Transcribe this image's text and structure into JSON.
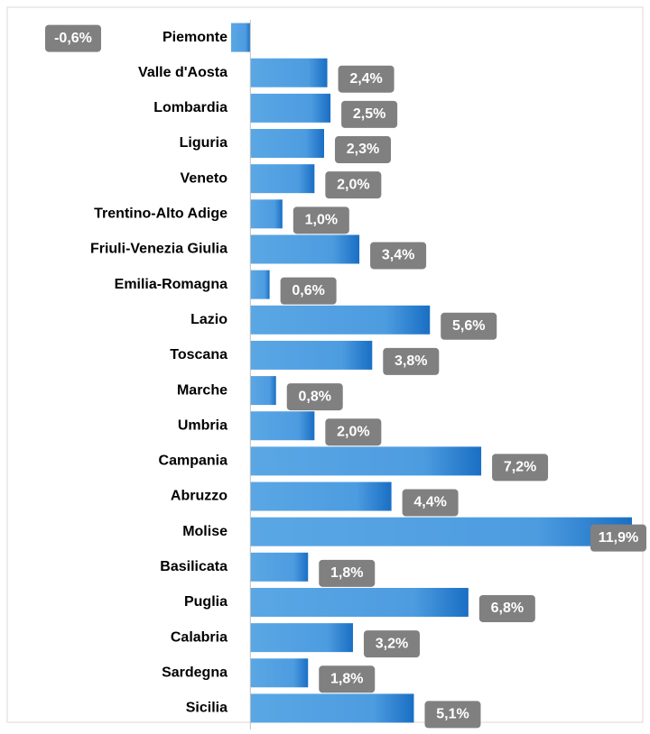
{
  "chart_data": {
    "type": "bar",
    "orientation": "horizontal",
    "categories": [
      "Piemonte",
      "Valle d'Aosta",
      "Lombardia",
      "Liguria",
      "Veneto",
      "Trentino-Alto Adige",
      "Friuli-Venezia Giulia",
      "Emilia-Romagna",
      "Lazio",
      "Toscana",
      "Marche",
      "Umbria",
      "Campania",
      "Abruzzo",
      "Molise",
      "Basilicata",
      "Puglia",
      "Calabria",
      "Sardegna",
      "Sicilia"
    ],
    "values": [
      -0.6,
      2.4,
      2.5,
      2.3,
      2.0,
      1.0,
      3.4,
      0.6,
      5.6,
      3.8,
      0.8,
      2.0,
      7.2,
      4.4,
      11.9,
      1.8,
      6.8,
      3.2,
      1.8,
      5.1
    ],
    "value_labels": [
      "-0,6%",
      "2,4%",
      "2,5%",
      "2,3%",
      "2,0%",
      "1,0%",
      "3,4%",
      "0,6%",
      "5,6%",
      "3,8%",
      "0,8%",
      "2,0%",
      "7,2%",
      "4,4%",
      "11,9%",
      "1,8%",
      "6,8%",
      "3,2%",
      "1,8%",
      "5,1%"
    ],
    "color": "#2f86d6",
    "xlim": [
      -0.6,
      11.9
    ]
  }
}
